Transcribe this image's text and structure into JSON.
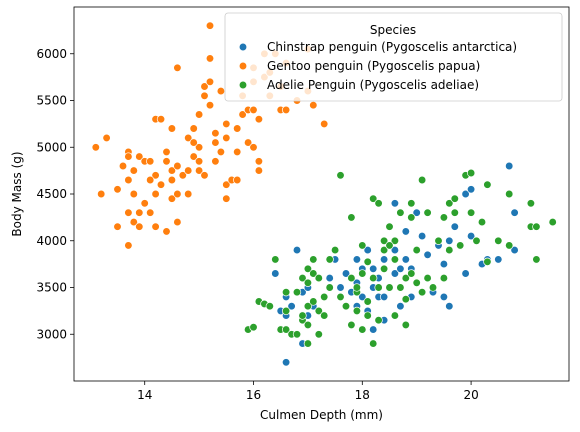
{
  "chart_data": {
    "type": "scatter",
    "title": "",
    "xlabel": "Culmen Depth (mm)",
    "ylabel": "Body Mass (g)",
    "xlim": [
      12.7,
      21.8
    ],
    "ylim": [
      2500,
      6500
    ],
    "xticks": [
      14,
      16,
      18,
      20
    ],
    "yticks": [
      3000,
      3500,
      4000,
      4500,
      5000,
      5500,
      6000
    ],
    "grid": false,
    "legend": {
      "title": "Species",
      "placement": "top-right"
    },
    "series": [
      {
        "name": "Chinstrap penguin (Pygoscelis antarctica)",
        "color": "#1f77b4",
        "points": [
          [
            16.4,
            3650
          ],
          [
            16.5,
            3250
          ],
          [
            16.6,
            2700
          ],
          [
            16.6,
            3400
          ],
          [
            16.7,
            3300
          ],
          [
            16.8,
            3900
          ],
          [
            16.9,
            3450
          ],
          [
            17.0,
            3500
          ],
          [
            17.0,
            3200
          ],
          [
            17.1,
            3300
          ],
          [
            17.3,
            3400
          ],
          [
            17.4,
            3600
          ],
          [
            17.6,
            3500
          ],
          [
            17.7,
            3650
          ],
          [
            17.8,
            3450
          ],
          [
            17.9,
            3550
          ],
          [
            17.9,
            3800
          ],
          [
            18.0,
            3400
          ],
          [
            18.1,
            3900
          ],
          [
            18.1,
            3250
          ],
          [
            18.2,
            3700
          ],
          [
            18.2,
            3500
          ],
          [
            18.3,
            3600
          ],
          [
            18.3,
            3400
          ],
          [
            18.4,
            3800
          ],
          [
            18.5,
            3500
          ],
          [
            18.5,
            3950
          ],
          [
            18.6,
            3650
          ],
          [
            18.6,
            4400
          ],
          [
            18.7,
            3700
          ],
          [
            18.7,
            3300
          ],
          [
            18.8,
            3800
          ],
          [
            18.8,
            4100
          ],
          [
            18.9,
            3400
          ],
          [
            18.9,
            3700
          ],
          [
            19.0,
            4300
          ],
          [
            19.0,
            3900
          ],
          [
            19.1,
            4050
          ],
          [
            19.2,
            3600
          ],
          [
            19.3,
            3450
          ],
          [
            19.4,
            3950
          ],
          [
            19.5,
            3750
          ],
          [
            19.6,
            4000
          ],
          [
            19.7,
            4150
          ],
          [
            19.8,
            3950
          ],
          [
            19.9,
            3650
          ],
          [
            19.9,
            4500
          ],
          [
            20.0,
            4050
          ],
          [
            20.0,
            4550
          ],
          [
            20.3,
            3800
          ],
          [
            20.5,
            3800
          ],
          [
            20.7,
            4800
          ],
          [
            20.8,
            4300
          ],
          [
            20.8,
            3900
          ],
          [
            17.9,
            3300
          ],
          [
            18.2,
            3050
          ],
          [
            18.4,
            3150
          ],
          [
            19.5,
            3400
          ],
          [
            16.9,
            2900
          ],
          [
            20.2,
            3750
          ],
          [
            18.9,
            3650
          ],
          [
            18.0,
            3700
          ],
          [
            17.5,
            3800
          ],
          [
            19.6,
            3300
          ],
          [
            18.6,
            3900
          ],
          [
            19.2,
            3850
          ],
          [
            16.6,
            3200
          ],
          [
            18.4,
            3400
          ]
        ]
      },
      {
        "name": "Gentoo penguin (Pygoscelis papua)",
        "color": "#ff7f0e",
        "points": [
          [
            13.1,
            5000
          ],
          [
            13.2,
            4500
          ],
          [
            13.3,
            5100
          ],
          [
            13.5,
            4150
          ],
          [
            13.5,
            4550
          ],
          [
            13.6,
            4800
          ],
          [
            13.7,
            4650
          ],
          [
            13.7,
            4950
          ],
          [
            13.7,
            4900
          ],
          [
            13.7,
            3950
          ],
          [
            13.7,
            4300
          ],
          [
            13.8,
            4200
          ],
          [
            13.8,
            4750
          ],
          [
            13.8,
            4500
          ],
          [
            13.9,
            4150
          ],
          [
            13.9,
            4900
          ],
          [
            14.0,
            4850
          ],
          [
            14.0,
            4400
          ],
          [
            14.1,
            4300
          ],
          [
            14.1,
            4850
          ],
          [
            14.2,
            4700
          ],
          [
            14.2,
            5300
          ],
          [
            14.2,
            4150
          ],
          [
            14.2,
            4500
          ],
          [
            14.3,
            4600
          ],
          [
            14.3,
            5300
          ],
          [
            14.4,
            4950
          ],
          [
            14.4,
            4850
          ],
          [
            14.4,
            4100
          ],
          [
            14.5,
            4750
          ],
          [
            14.5,
            4450
          ],
          [
            14.5,
            4650
          ],
          [
            14.6,
            4800
          ],
          [
            14.6,
            4500
          ],
          [
            14.6,
            5850
          ],
          [
            14.6,
            4200
          ],
          [
            14.7,
            4700
          ],
          [
            14.8,
            5100
          ],
          [
            14.8,
            4500
          ],
          [
            14.9,
            5200
          ],
          [
            14.9,
            4900
          ],
          [
            15.0,
            5350
          ],
          [
            15.0,
            4750
          ],
          [
            15.0,
            5000
          ],
          [
            15.1,
            5550
          ],
          [
            15.1,
            5650
          ],
          [
            15.1,
            4700
          ],
          [
            15.2,
            5450
          ],
          [
            15.2,
            6300
          ],
          [
            15.2,
            5700
          ],
          [
            15.3,
            5150
          ],
          [
            15.3,
            5050
          ],
          [
            15.4,
            4950
          ],
          [
            15.4,
            5600
          ],
          [
            15.5,
            5250
          ],
          [
            15.5,
            4600
          ],
          [
            15.5,
            4450
          ],
          [
            15.6,
            4650
          ],
          [
            15.7,
            5200
          ],
          [
            15.7,
            4950
          ],
          [
            15.8,
            5350
          ],
          [
            15.8,
            5550
          ],
          [
            15.9,
            5400
          ],
          [
            15.9,
            5050
          ],
          [
            16.0,
            5000
          ],
          [
            16.0,
            5700
          ],
          [
            16.0,
            5850
          ],
          [
            16.1,
            4850
          ],
          [
            16.1,
            5300
          ],
          [
            16.2,
            5750
          ],
          [
            16.2,
            6000
          ],
          [
            16.3,
            5800
          ],
          [
            16.3,
            5550
          ],
          [
            16.4,
            6000
          ],
          [
            16.5,
            5650
          ],
          [
            16.5,
            5400
          ],
          [
            16.6,
            5400
          ],
          [
            16.6,
            5900
          ],
          [
            16.8,
            5500
          ],
          [
            17.0,
            5600
          ],
          [
            17.0,
            6050
          ],
          [
            17.1,
            5450
          ],
          [
            17.3,
            5250
          ],
          [
            15.0,
            4850
          ],
          [
            14.8,
            4750
          ],
          [
            15.5,
            5100
          ],
          [
            16.1,
            4750
          ],
          [
            14.1,
            4650
          ],
          [
            15.3,
            4850
          ],
          [
            14.9,
            5050
          ],
          [
            13.9,
            4300
          ],
          [
            15.7,
            4650
          ],
          [
            16.0,
            5400
          ],
          [
            15.2,
            5950
          ],
          [
            14.5,
            5200
          ]
        ]
      },
      {
        "name": "Adelie Penguin (Pygoscelis adeliae)",
        "color": "#2ca02c",
        "points": [
          [
            15.9,
            3050
          ],
          [
            16.0,
            3075
          ],
          [
            16.1,
            3350
          ],
          [
            16.2,
            3325
          ],
          [
            16.3,
            3300
          ],
          [
            16.4,
            3800
          ],
          [
            16.5,
            3050
          ],
          [
            16.6,
            3050
          ],
          [
            16.6,
            3250
          ],
          [
            16.7,
            3000
          ],
          [
            16.8,
            3000
          ],
          [
            16.8,
            3450
          ],
          [
            16.9,
            3150
          ],
          [
            16.9,
            3200
          ],
          [
            16.9,
            3600
          ],
          [
            17.0,
            3700
          ],
          [
            17.0,
            2900
          ],
          [
            17.0,
            3100
          ],
          [
            17.0,
            3300
          ],
          [
            17.1,
            3350
          ],
          [
            17.1,
            3650
          ],
          [
            17.1,
            3800
          ],
          [
            17.2,
            3000
          ],
          [
            17.2,
            3250
          ],
          [
            17.2,
            3600
          ],
          [
            17.3,
            3200
          ],
          [
            17.4,
            3800
          ],
          [
            17.4,
            3500
          ],
          [
            17.5,
            3900
          ],
          [
            17.6,
            3400
          ],
          [
            17.7,
            3300
          ],
          [
            17.8,
            3100
          ],
          [
            17.8,
            4250
          ],
          [
            17.8,
            3600
          ],
          [
            17.9,
            3250
          ],
          [
            17.9,
            3450
          ],
          [
            18.0,
            3050
          ],
          [
            18.0,
            3650
          ],
          [
            18.0,
            3950
          ],
          [
            18.1,
            3350
          ],
          [
            18.1,
            3200
          ],
          [
            18.2,
            3600
          ],
          [
            18.2,
            4450
          ],
          [
            18.3,
            3500
          ],
          [
            18.3,
            3150
          ],
          [
            18.4,
            4000
          ],
          [
            18.4,
            3700
          ],
          [
            18.5,
            3500
          ],
          [
            18.5,
            4150
          ],
          [
            18.6,
            3800
          ],
          [
            18.6,
            3200
          ],
          [
            18.7,
            3500
          ],
          [
            18.7,
            4300
          ],
          [
            18.8,
            3600
          ],
          [
            18.8,
            3100
          ],
          [
            18.9,
            3650
          ],
          [
            18.9,
            4250
          ],
          [
            19.0,
            3550
          ],
          [
            19.0,
            3900
          ],
          [
            19.1,
            3450
          ],
          [
            19.1,
            4650
          ],
          [
            19.2,
            3600
          ],
          [
            19.3,
            3500
          ],
          [
            19.4,
            4000
          ],
          [
            19.5,
            4250
          ],
          [
            19.5,
            3600
          ],
          [
            19.6,
            4400
          ],
          [
            19.7,
            4300
          ],
          [
            19.8,
            3950
          ],
          [
            19.9,
            4700
          ],
          [
            20.0,
            4300
          ],
          [
            20.0,
            4725
          ],
          [
            20.1,
            4000
          ],
          [
            20.2,
            4200
          ],
          [
            20.3,
            3775
          ],
          [
            20.5,
            4000
          ],
          [
            20.7,
            4500
          ],
          [
            20.7,
            3950
          ],
          [
            21.1,
            4400
          ],
          [
            21.1,
            4150
          ],
          [
            21.2,
            4150
          ],
          [
            21.2,
            3800
          ],
          [
            21.5,
            4200
          ],
          [
            17.6,
            4700
          ],
          [
            18.3,
            4400
          ],
          [
            18.6,
            4000
          ],
          [
            19.2,
            4300
          ],
          [
            18.1,
            3775
          ],
          [
            17.3,
            3400
          ],
          [
            18.4,
            3900
          ],
          [
            17.9,
            3500
          ],
          [
            19.6,
            3900
          ],
          [
            18.9,
            4400
          ],
          [
            18.5,
            3950
          ],
          [
            20.3,
            4600
          ],
          [
            17.0,
            3550
          ],
          [
            16.6,
            3450
          ],
          [
            18.2,
            2900
          ],
          [
            18.8,
            3375
          ],
          [
            19.7,
            4450
          ]
        ]
      }
    ]
  }
}
